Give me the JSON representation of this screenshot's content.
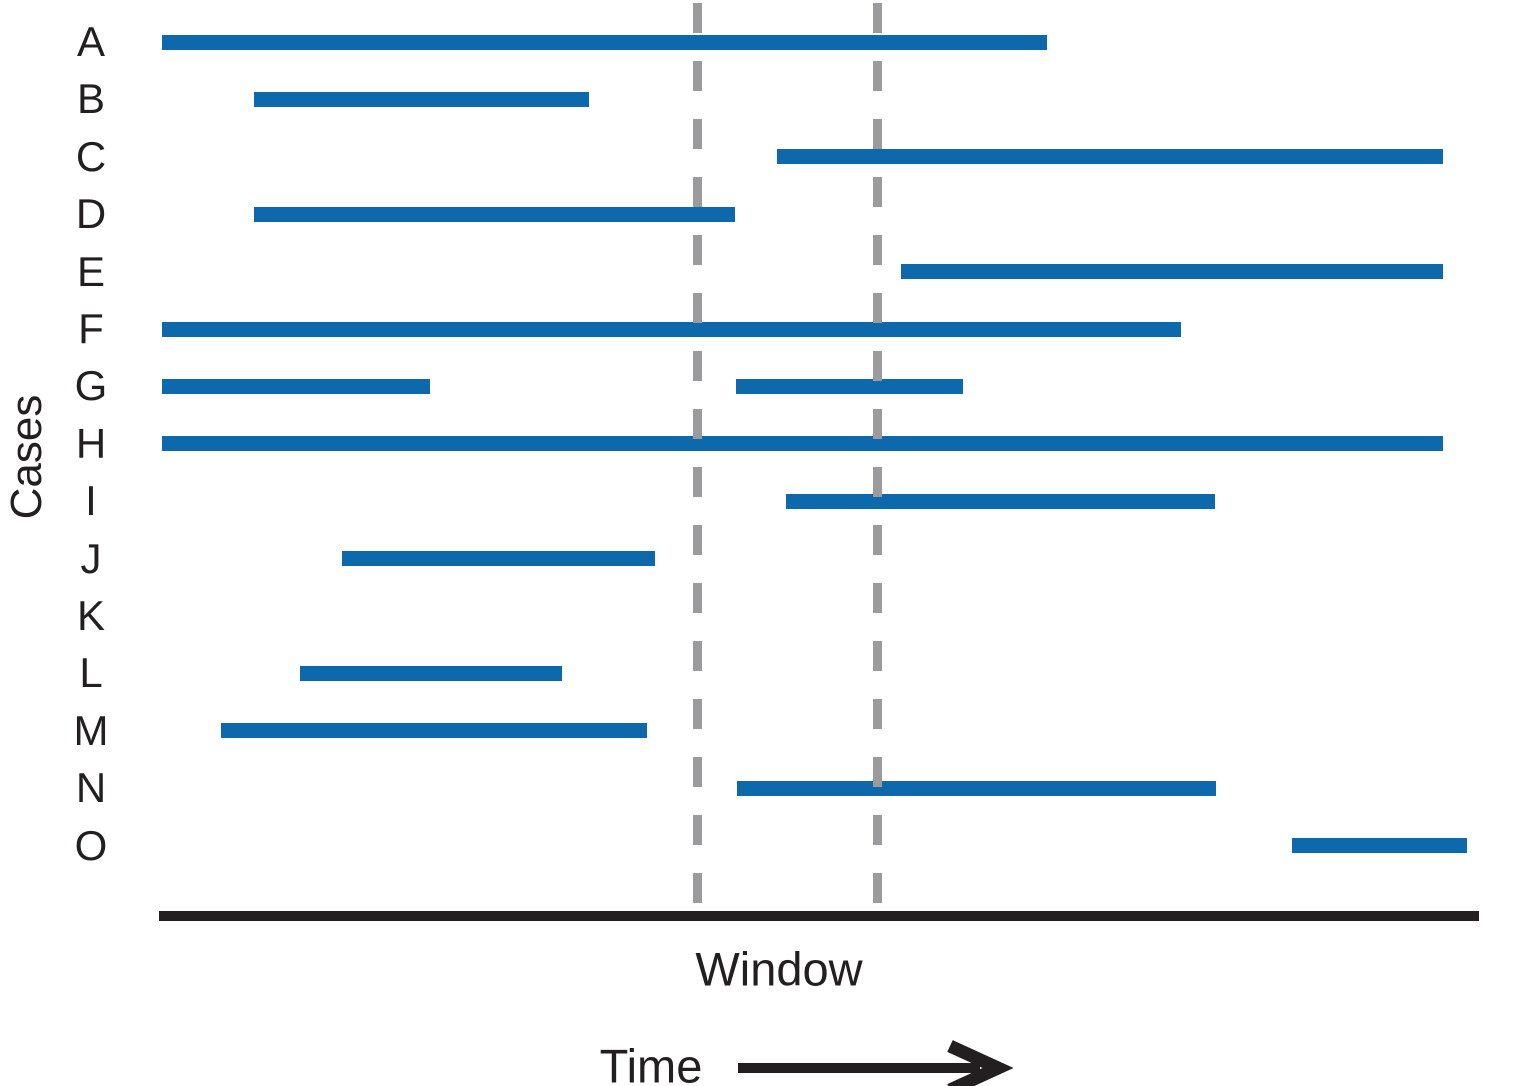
{
  "labels": {
    "cases_axis": "Cases",
    "time_axis": "Time",
    "window": "Window"
  },
  "colors": {
    "bar_blue": "#0d69ac",
    "window_dash_gray": "#9b9b9d",
    "axis_black": "#231f20",
    "text": "#231f20",
    "background": "#ffffff"
  },
  "chart_data": {
    "type": "bar",
    "subtype": "gantt-case-intervals",
    "orientation": "horizontal",
    "title": "",
    "xlabel": "Time",
    "ylabel": "Cases",
    "x_axis": {
      "min": 0,
      "max": 100,
      "ticks_visible": false,
      "unit": "relative time"
    },
    "grid": false,
    "legend": false,
    "categories": [
      "A",
      "B",
      "C",
      "D",
      "E",
      "F",
      "G",
      "H",
      "I",
      "J",
      "K",
      "L",
      "M",
      "N",
      "O"
    ],
    "intervals": {
      "A": [
        [
          0.2,
          67.3
        ]
      ],
      "B": [
        [
          7.2,
          32.6
        ]
      ],
      "C": [
        [
          46.8,
          97.3
        ]
      ],
      "D": [
        [
          7.2,
          43.6
        ]
      ],
      "E": [
        [
          56.2,
          97.3
        ]
      ],
      "F": [
        [
          0.2,
          77.4
        ]
      ],
      "G": [
        [
          0.2,
          20.5
        ],
        [
          43.7,
          60.9
        ]
      ],
      "H": [
        [
          0.2,
          97.3
        ]
      ],
      "I": [
        [
          47.5,
          80.0
        ]
      ],
      "J": [
        [
          13.9,
          37.6
        ]
      ],
      "K": [],
      "L": [
        [
          10.7,
          30.5
        ]
      ],
      "M": [
        [
          4.7,
          37.0
        ]
      ],
      "N": [
        [
          43.8,
          80.1
        ]
      ],
      "O": [
        [
          85.8,
          99.1
        ]
      ]
    },
    "window": {
      "label": "Window",
      "start": 40.8,
      "end": 54.4,
      "style": "vertical-dashed-lines"
    },
    "annotations": [
      {
        "text": "Window",
        "position": "below-axis-between-dashed-lines"
      },
      {
        "text": "Time",
        "position": "bottom-left-of-arrow",
        "arrow": "right"
      }
    ]
  }
}
